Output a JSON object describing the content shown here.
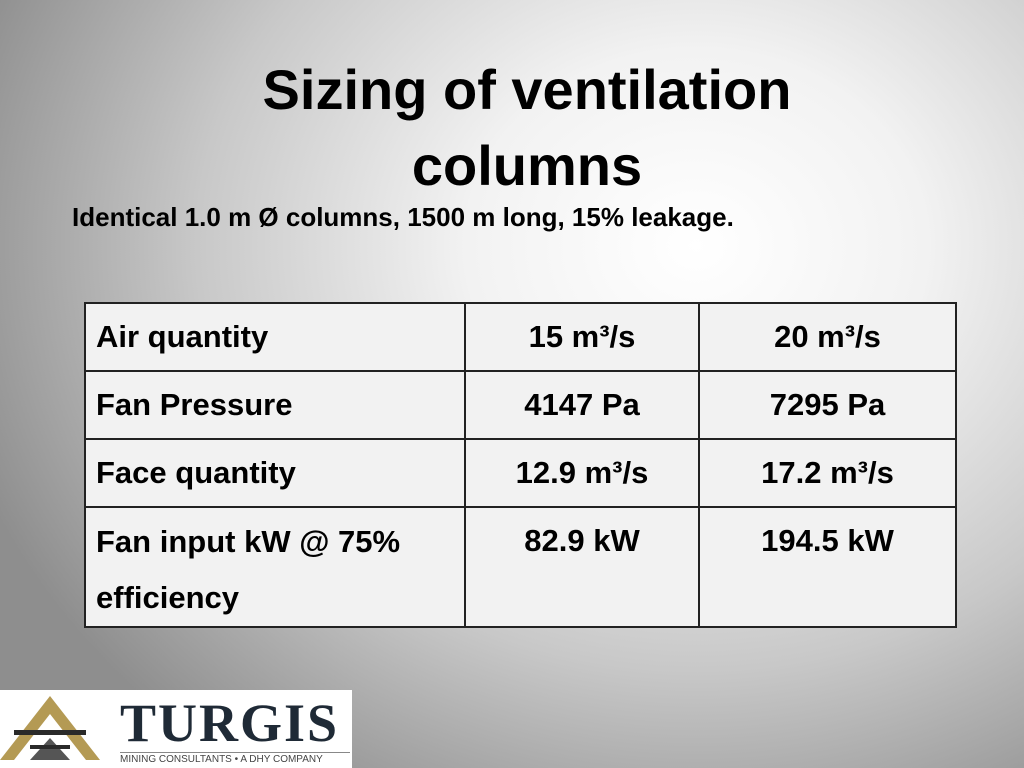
{
  "header": {
    "title": "Sizing of ventilation columns",
    "subtitle": "Identical 1.0 m Ø columns, 1500 m long, 15% leakage."
  },
  "table": {
    "rows": [
      [
        "Air quantity",
        "15 m³/s",
        "20 m³/s"
      ],
      [
        "Fan Pressure",
        "4147 Pa",
        "7295 Pa"
      ],
      [
        "Face quantity",
        "12.9 m³/s",
        "17.2 m³/s"
      ],
      [
        "Fan input kW @ 75% efficiency",
        "82.9 kW",
        "194.5 kW"
      ]
    ]
  },
  "logo": {
    "name": "TURGIS",
    "tagline": "MINING CONSULTANTS • A DHY COMPANY"
  }
}
